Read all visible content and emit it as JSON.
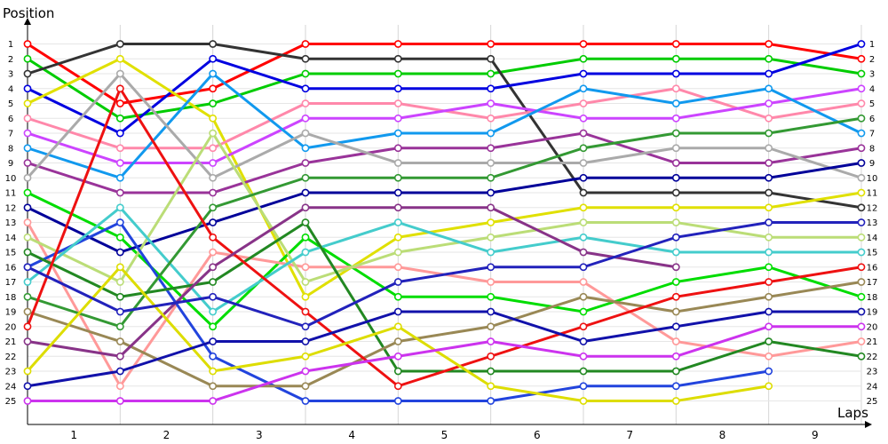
{
  "chart_data": {
    "type": "line",
    "title": "",
    "ylabel": "Position",
    "xlabel": "Laps",
    "grid": true,
    "x_points": [
      0,
      1,
      2,
      3,
      4,
      5,
      6,
      7,
      8,
      9
    ],
    "x_tick_labels": [
      "1",
      "2",
      "3",
      "4",
      "5",
      "6",
      "7",
      "8",
      "9"
    ],
    "y_tick_labels": [
      "1",
      "2",
      "3",
      "4",
      "5",
      "6",
      "7",
      "8",
      "9",
      "10",
      "11",
      "12",
      "13",
      "14",
      "15",
      "16",
      "17",
      "18",
      "19",
      "20",
      "21",
      "22",
      "23",
      "24",
      "25"
    ],
    "ylim": [
      1,
      25
    ],
    "y_inverted": true,
    "series": [
      {
        "color": "#ff0000",
        "values": [
          1,
          5,
          4,
          1,
          1,
          1,
          1,
          1,
          1,
          2
        ]
      },
      {
        "color": "#00cc00",
        "values": [
          2,
          6,
          5,
          3,
          3,
          3,
          2,
          2,
          2,
          3
        ]
      },
      {
        "color": "#333333",
        "values": [
          3,
          1,
          1,
          2,
          2,
          2,
          11,
          11,
          11,
          12
        ]
      },
      {
        "color": "#0000e0",
        "values": [
          4,
          7,
          2,
          4,
          4,
          4,
          3,
          3,
          3,
          1
        ]
      },
      {
        "color": "#e0e000",
        "values": [
          5,
          2,
          6,
          18,
          14,
          13,
          12,
          12,
          12,
          11
        ]
      },
      {
        "color": "#ff88aa",
        "values": [
          6,
          8,
          8,
          5,
          5,
          6,
          5,
          4,
          6,
          5
        ]
      },
      {
        "color": "#cc44ff",
        "values": [
          7,
          9,
          9,
          6,
          6,
          5,
          6,
          6,
          5,
          4
        ]
      },
      {
        "color": "#1199ee",
        "values": [
          8,
          10,
          3,
          8,
          7,
          7,
          4,
          5,
          4,
          7
        ]
      },
      {
        "color": "#993399",
        "values": [
          9,
          11,
          11,
          9,
          8,
          8,
          7,
          9,
          9,
          8
        ]
      },
      {
        "color": "#aaaaaa",
        "values": [
          10,
          3,
          10,
          7,
          9,
          9,
          9,
          8,
          8,
          10
        ]
      },
      {
        "color": "#00dd00",
        "values": [
          11,
          14,
          20,
          14,
          18,
          18,
          19,
          17,
          16,
          18
        ]
      },
      {
        "color": "#000099",
        "values": [
          12,
          15,
          13,
          11,
          11,
          11,
          10,
          10,
          10,
          9
        ]
      },
      {
        "color": "#ff9999",
        "values": [
          13,
          24,
          15,
          16,
          16,
          17,
          17,
          21,
          22,
          21
        ]
      },
      {
        "color": "#bbdd77",
        "values": [
          14,
          17,
          7,
          17,
          15,
          14,
          13,
          13,
          14,
          14
        ]
      },
      {
        "color": "#2244dd",
        "values": [
          16,
          13,
          22,
          25,
          25,
          25,
          24,
          24,
          23
        ]
      },
      {
        "color": "#44cccc",
        "values": [
          17,
          12,
          19,
          15,
          13,
          15,
          14,
          15,
          15,
          15
        ]
      },
      {
        "color": "#339933",
        "values": [
          18,
          20,
          12,
          10,
          10,
          10,
          8,
          7,
          7,
          6
        ]
      },
      {
        "color": "#228822",
        "values": [
          15,
          18,
          17,
          13,
          23,
          23,
          23,
          23,
          21,
          22
        ]
      },
      {
        "color": "#998855",
        "values": [
          19,
          21,
          24,
          24,
          21,
          20,
          18,
          19,
          18,
          17
        ]
      },
      {
        "color": "#ee1111",
        "values": [
          20,
          4,
          14,
          19,
          24,
          22,
          20,
          18,
          17,
          16
        ]
      },
      {
        "color": "#883388",
        "values": [
          21,
          22,
          16,
          12,
          12,
          12,
          15,
          16
        ]
      },
      {
        "color": "#dddd00",
        "values": [
          23,
          16,
          23,
          22,
          20,
          24,
          25,
          25,
          24
        ]
      },
      {
        "color": "#1111aa",
        "values": [
          24,
          23,
          21,
          21,
          19,
          19,
          21,
          20,
          19,
          19
        ]
      },
      {
        "color": "#cc33ee",
        "values": [
          25,
          25,
          25,
          23,
          22,
          21,
          22,
          22,
          20,
          20
        ]
      },
      {
        "color": "#2222bb",
        "values": [
          16,
          19,
          18,
          20,
          17,
          16,
          16,
          14,
          13,
          13
        ]
      }
    ]
  }
}
